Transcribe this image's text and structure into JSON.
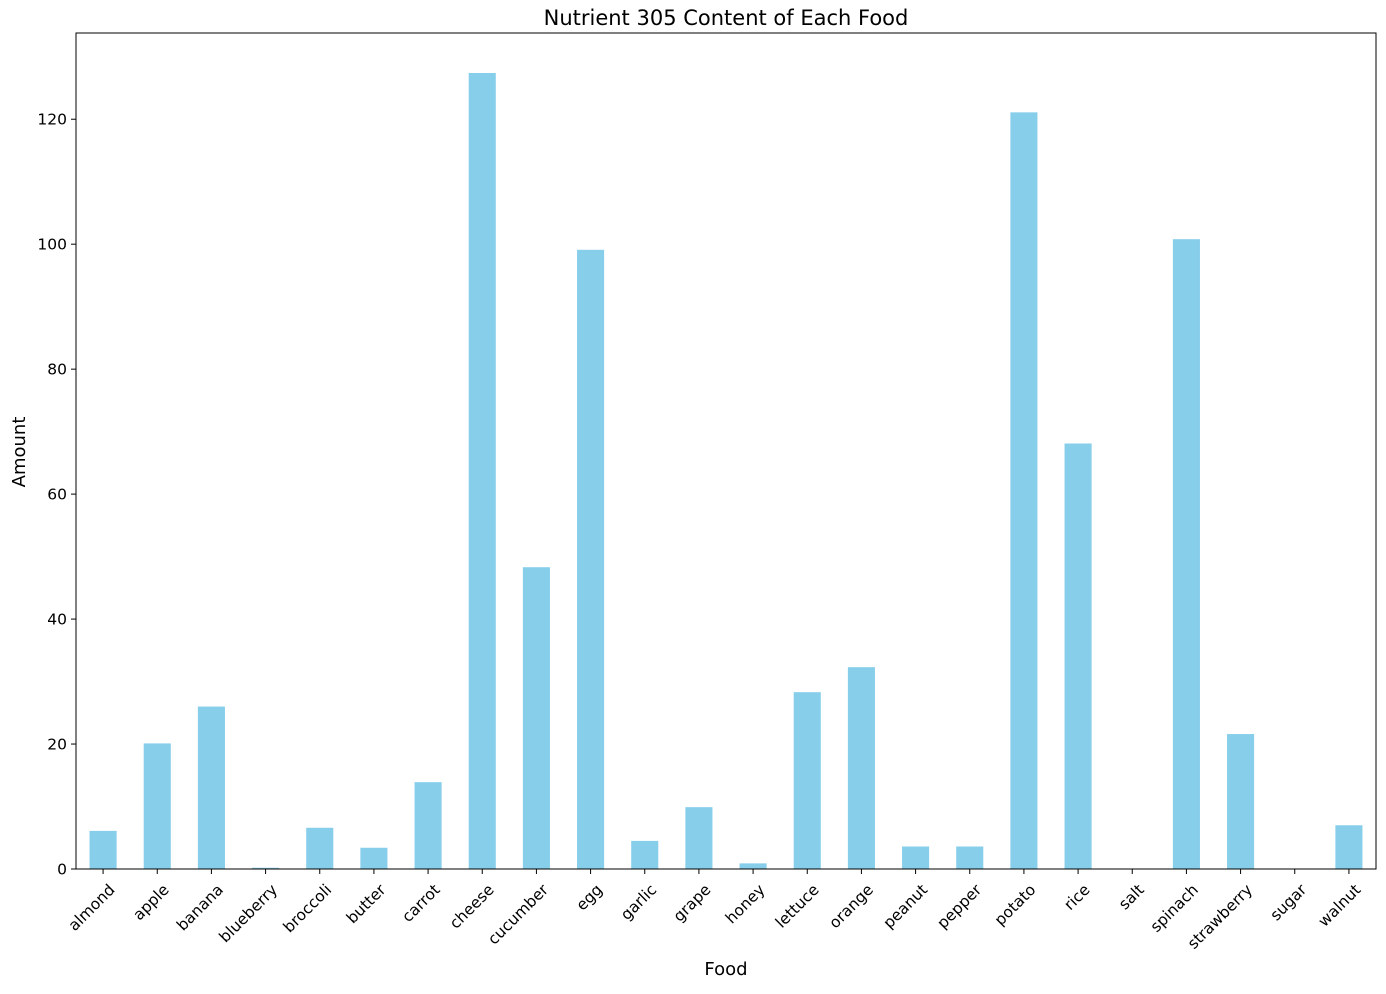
{
  "chart_data": {
    "type": "bar",
    "title": "Nutrient 305 Content of Each Food",
    "xlabel": "Food",
    "ylabel": "Amount",
    "categories": [
      "almond",
      "apple",
      "banana",
      "blueberry",
      "broccoli",
      "butter",
      "carrot",
      "cheese",
      "cucumber",
      "egg",
      "garlic",
      "grape",
      "honey",
      "lettuce",
      "orange",
      "peanut",
      "pepper",
      "potato",
      "rice",
      "salt",
      "spinach",
      "strawberry",
      "sugar",
      "walnut"
    ],
    "values": [
      6.1,
      20.1,
      26.0,
      0.2,
      6.6,
      3.4,
      13.9,
      127.4,
      48.3,
      99.1,
      4.5,
      9.9,
      0.9,
      28.3,
      32.3,
      3.6,
      3.6,
      121.1,
      68.1,
      0.0,
      100.8,
      21.6,
      0.0,
      7.0
    ],
    "ylim": [
      0,
      133.8
    ],
    "yticks": [
      0,
      20,
      40,
      60,
      80,
      100,
      120
    ],
    "bar_color": "#87ceeb",
    "grid": false,
    "legend": "none"
  }
}
